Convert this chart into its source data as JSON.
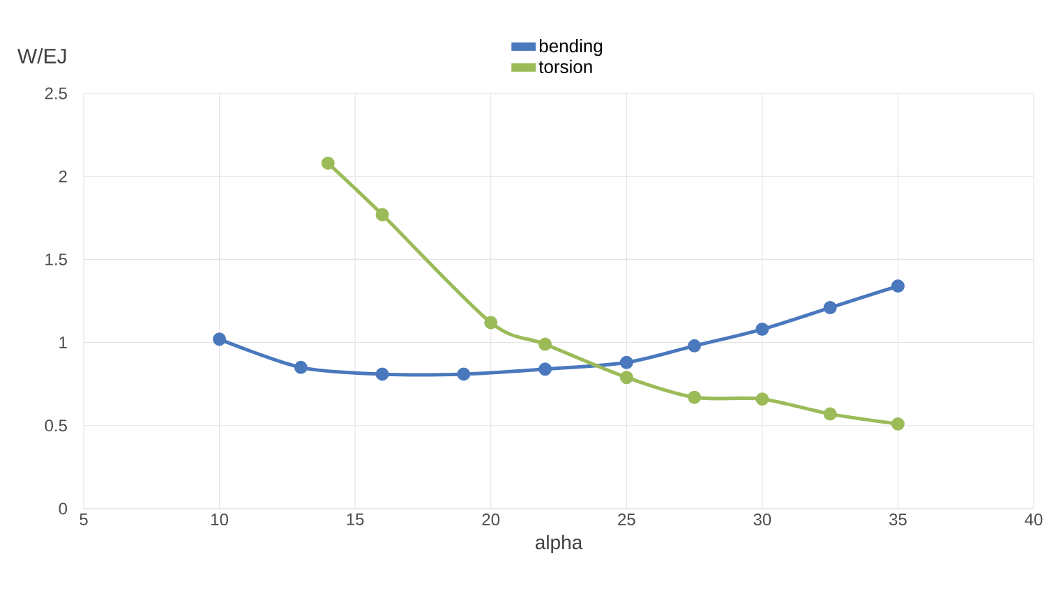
{
  "chart_data": {
    "type": "line",
    "xlabel": "alpha",
    "ylabel": "W/EJ",
    "xlim": [
      5,
      40
    ],
    "xticks": [
      5,
      10,
      15,
      20,
      25,
      30,
      35,
      40
    ],
    "ylim": [
      0,
      2.5
    ],
    "yticks": [
      0,
      {
        "value": 0.5,
        "label": "0.5"
      },
      1,
      {
        "value": 1.5,
        "label": "1.5"
      },
      2,
      {
        "value": 2.5,
        "label": "2.5"
      }
    ],
    "grid": true,
    "legend": "top",
    "marker": "circle",
    "line_style": "solid",
    "series": [
      {
        "name": "bending",
        "color": "#4a78bd",
        "x": [
          10,
          13,
          16,
          19,
          22,
          25,
          27.5,
          30,
          32.5,
          35
        ],
        "values": [
          1.02,
          0.85,
          0.81,
          0.81,
          0.84,
          0.88,
          0.98,
          1.08,
          1.21,
          1.34
        ]
      },
      {
        "name": "torsion",
        "color": "#9bbb59",
        "x": [
          14,
          16,
          20,
          22,
          25,
          27.5,
          30,
          32.5,
          35
        ],
        "values": [
          2.08,
          1.77,
          1.12,
          0.99,
          0.79,
          0.67,
          0.66,
          0.57,
          0.51
        ]
      }
    ]
  }
}
